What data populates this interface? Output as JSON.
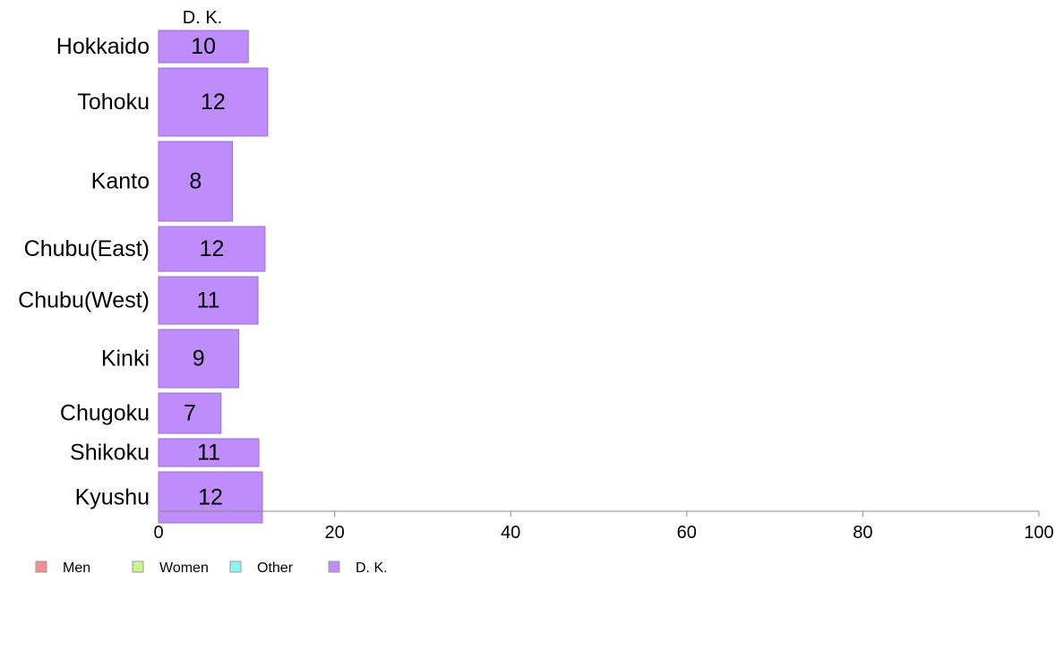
{
  "chart_data": {
    "type": "bar",
    "orientation": "horizontal",
    "stacked": true,
    "title": "",
    "xlabel": "",
    "ylabel": "",
    "xlim": [
      0,
      100
    ],
    "x_ticks": [
      "0",
      "20",
      "40",
      "60",
      "80",
      "100"
    ],
    "grid": false,
    "legend_position": "bottom-left",
    "series_header": "D. K.",
    "categories": [
      "Hokkaido",
      "Tohoku",
      "Kanto",
      "Chubu(East)",
      "Chubu(West)",
      "Kinki",
      "Chugoku",
      "Shikoku",
      "Kyushu"
    ],
    "category_weights": [
      36,
      76,
      89,
      50,
      53,
      65,
      45,
      31,
      57
    ],
    "series": [
      {
        "name": "Men",
        "color": "#f28e8e",
        "values": [
          0,
          0,
          0,
          0,
          0,
          0,
          0,
          0,
          0
        ]
      },
      {
        "name": "Women",
        "color": "#ccf28e",
        "values": [
          0,
          0,
          0,
          0,
          0,
          0,
          0,
          0,
          0
        ]
      },
      {
        "name": "Other",
        "color": "#8ef2f0",
        "values": [
          0,
          0,
          0,
          0,
          0,
          0,
          0,
          0,
          0
        ]
      },
      {
        "name": "D. K.",
        "color": "#bf8cfc",
        "values": [
          10.2,
          12.4,
          8.4,
          12.1,
          11.3,
          9.1,
          7.1,
          11.4,
          11.8
        ]
      }
    ],
    "data_labels": [
      "10",
      "12",
      "8",
      "12",
      "11",
      "9",
      "7",
      "11",
      "12"
    ]
  }
}
